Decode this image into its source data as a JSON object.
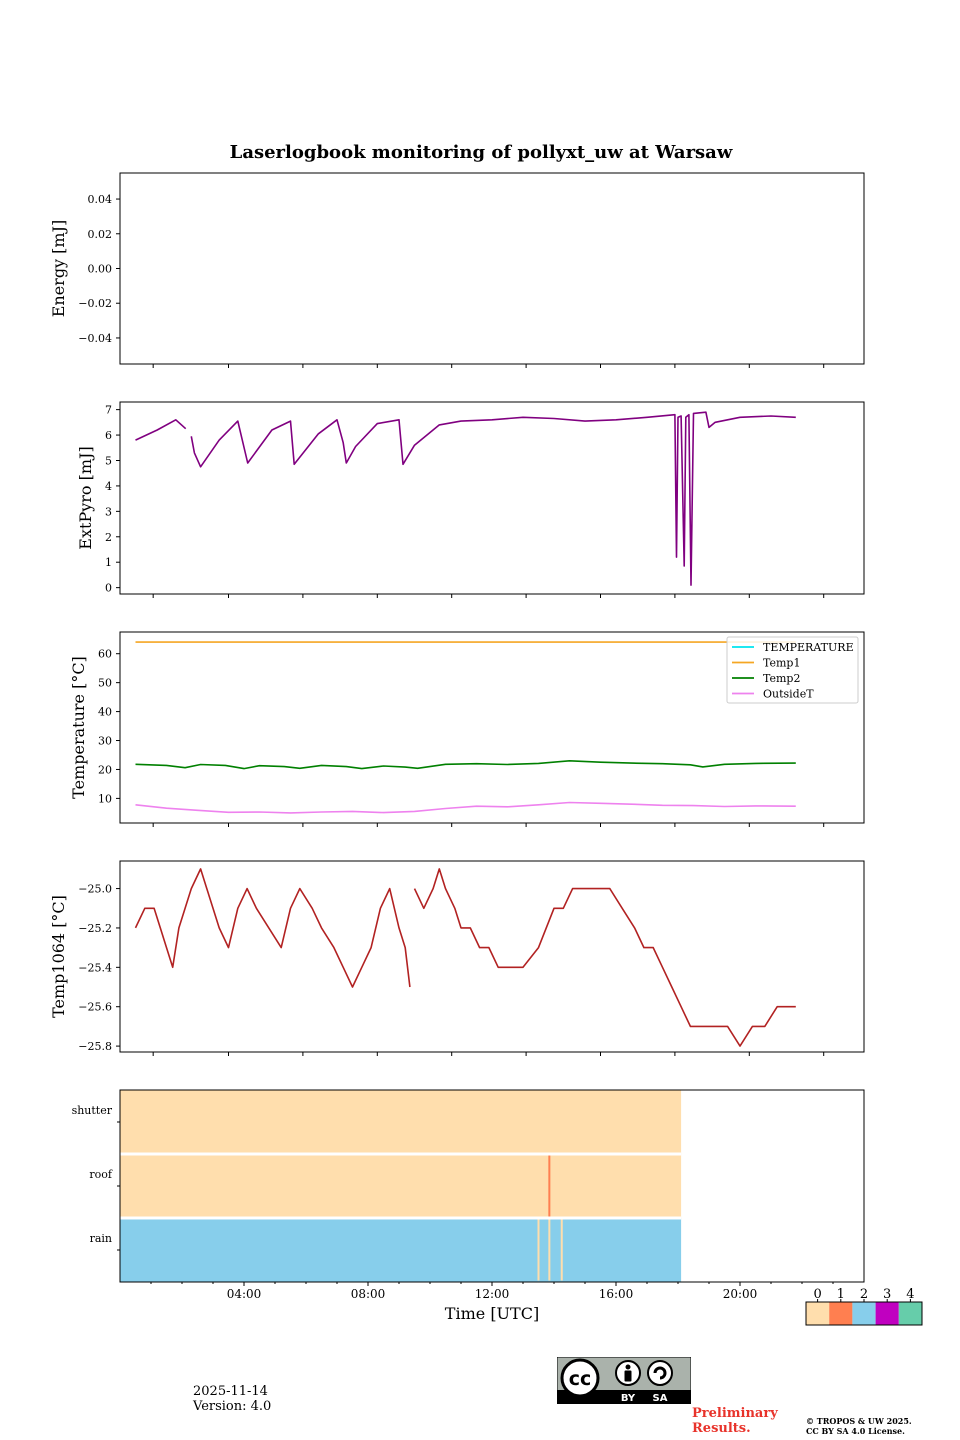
{
  "figure": {
    "title": "Laserlogbook monitoring of pollyxt_uw at Warsaw",
    "date": "2025-11-14",
    "version": "Version: 4.0",
    "preliminary": "Preliminary Results.",
    "copyright_line1": "© TROPOS & UW 2025.",
    "copyright_line2": "CC BY SA 4.0 License.",
    "cc_badge": {
      "icon": "cc-by-sa-badge-icon",
      "cc": "cc",
      "by": "BY",
      "sa": "SA"
    }
  },
  "chart_data": [
    {
      "id": "energy",
      "type": "line",
      "ylabel": "Energy [mJ]",
      "ylim": [
        -0.055,
        0.055
      ],
      "yticks": [
        0.04,
        0.02,
        0.0,
        -0.02,
        -0.04
      ],
      "yticklabels": [
        "0.04",
        "0.02",
        "0.00",
        "−0.02",
        "−0.04"
      ],
      "series": []
    },
    {
      "id": "extpyro",
      "type": "line",
      "ylabel": "ExtPyro [mJ]",
      "ylim": [
        -0.25,
        7.3
      ],
      "yticks": [
        0,
        1,
        2,
        3,
        4,
        5,
        6,
        7
      ],
      "yticklabels": [
        "0",
        "1",
        "2",
        "3",
        "4",
        "5",
        "6",
        "7"
      ],
      "color": "#800080",
      "series": [
        {
          "name": "ExtPyro",
          "x": [
            0.5,
            1.2,
            1.8,
            2.12,
            2.2,
            2.3,
            2.4,
            2.6,
            3.2,
            3.8,
            4.12,
            4.9,
            5.5,
            5.62,
            6.4,
            7.0,
            7.2,
            7.3,
            7.6,
            8.3,
            9.0,
            9.13,
            9.5,
            10.3,
            11.0,
            12.0,
            13.0,
            14.0,
            15.0,
            16.0,
            17.0,
            17.9,
            17.95,
            18.0,
            18.1,
            18.2,
            18.25,
            18.35,
            18.42,
            18.5,
            18.9,
            19.0,
            19.2,
            20.0,
            21.0,
            21.8
          ],
          "y": [
            5.8,
            6.2,
            6.6,
            6.25,
            null,
            5.95,
            5.3,
            4.75,
            5.8,
            6.55,
            4.9,
            6.2,
            6.55,
            4.85,
            6.05,
            6.6,
            5.7,
            4.9,
            5.55,
            6.45,
            6.6,
            4.85,
            5.6,
            6.4,
            6.55,
            6.6,
            6.7,
            6.65,
            6.55,
            6.6,
            6.7,
            6.8,
            1.2,
            6.7,
            6.75,
            0.85,
            6.7,
            6.8,
            0.1,
            6.85,
            6.9,
            6.3,
            6.5,
            6.7,
            6.75,
            6.7
          ]
        }
      ]
    },
    {
      "id": "temperature",
      "type": "line",
      "ylabel": "Temperature [°C]",
      "ylim": [
        1.5,
        67.5
      ],
      "yticks": [
        10,
        20,
        30,
        40,
        50,
        60
      ],
      "yticklabels": [
        "10",
        "20",
        "30",
        "40",
        "50",
        "60"
      ],
      "legend": "top-right",
      "series": [
        {
          "name": "TEMPERATURE",
          "color": "#00e5ee",
          "x": [],
          "y": []
        },
        {
          "name": "Temp1",
          "color": "#f5a623",
          "x": [
            0.5,
            21.8
          ],
          "y": [
            64,
            64
          ]
        },
        {
          "name": "Temp2",
          "color": "#008000",
          "x": [
            0.5,
            1.5,
            2.1,
            2.6,
            3.4,
            4.0,
            4.5,
            5.3,
            5.8,
            6.5,
            7.3,
            7.8,
            8.5,
            9.2,
            9.6,
            10.5,
            11.5,
            12.5,
            13.5,
            14.5,
            15.5,
            16.5,
            17.5,
            18.4,
            18.8,
            19.5,
            20.5,
            21.8
          ],
          "y": [
            21.8,
            21.4,
            20.6,
            21.7,
            21.4,
            20.3,
            21.3,
            21.0,
            20.4,
            21.4,
            21.0,
            20.3,
            21.2,
            20.8,
            20.4,
            21.8,
            22.0,
            21.7,
            22.1,
            23.0,
            22.5,
            22.2,
            22.0,
            21.6,
            20.9,
            21.8,
            22.1,
            22.2
          ]
        },
        {
          "name": "OutsideT",
          "color": "#ee82ee",
          "x": [
            0.5,
            1.5,
            2.5,
            3.5,
            4.5,
            5.5,
            6.5,
            7.5,
            8.5,
            9.5,
            10.5,
            11.5,
            12.5,
            13.5,
            14.5,
            15.5,
            16.5,
            17.5,
            18.5,
            19.5,
            20.5,
            21.8
          ],
          "y": [
            7.8,
            6.6,
            5.9,
            5.2,
            5.3,
            5.0,
            5.3,
            5.5,
            5.1,
            5.5,
            6.5,
            7.3,
            7.1,
            7.8,
            8.6,
            8.3,
            8.0,
            7.6,
            7.5,
            7.2,
            7.4,
            7.3
          ]
        }
      ]
    },
    {
      "id": "temp1064",
      "type": "line",
      "ylabel": "Temp1064 [°C]",
      "ylim": [
        -25.83,
        -24.86
      ],
      "yticks": [
        -25.0,
        -25.2,
        -25.4,
        -25.6,
        -25.8
      ],
      "yticklabels": [
        "−25.0",
        "−25.2",
        "−25.4",
        "−25.6",
        "−25.8"
      ],
      "color": "#b22222",
      "series": [
        {
          "name": "Temp1064",
          "x": [
            0.5,
            0.8,
            1.1,
            1.3,
            1.5,
            1.7,
            1.9,
            2.1,
            2.3,
            2.6,
            2.8,
            3.0,
            3.2,
            3.5,
            3.8,
            4.1,
            4.4,
            4.8,
            5.2,
            5.5,
            5.8,
            6.2,
            6.5,
            6.9,
            7.2,
            7.5,
            7.8,
            8.1,
            8.4,
            8.7,
            9.0,
            9.2,
            9.35,
            null,
            9.5,
            9.8,
            10.1,
            10.3,
            10.5,
            10.8,
            11.0,
            11.3,
            11.6,
            11.9,
            12.2,
            12.6,
            13.0,
            13.5,
            14.0,
            14.3,
            14.6,
            15.0,
            15.4,
            15.8,
            16.2,
            16.6,
            16.9,
            17.2,
            17.5,
            17.8,
            18.1,
            18.4,
            18.8,
            19.2,
            19.6,
            20.0,
            20.4,
            20.8,
            21.2,
            21.5,
            21.8
          ],
          "y": [
            -25.2,
            -25.1,
            -25.1,
            -25.2,
            -25.3,
            -25.4,
            -25.2,
            -25.1,
            -25.0,
            -24.9,
            -25.0,
            -25.1,
            -25.2,
            -25.3,
            -25.1,
            -25.0,
            -25.1,
            -25.2,
            -25.3,
            -25.1,
            -25.0,
            -25.1,
            -25.2,
            -25.3,
            -25.4,
            -25.5,
            -25.4,
            -25.3,
            -25.1,
            -25.0,
            -25.2,
            -25.3,
            -25.5,
            null,
            -25.0,
            -25.1,
            -25.0,
            -24.9,
            -25.0,
            -25.1,
            -25.2,
            -25.2,
            -25.3,
            -25.3,
            -25.4,
            -25.4,
            -25.4,
            -25.3,
            -25.1,
            -25.1,
            -25.0,
            -25.0,
            -25.0,
            -25.0,
            -25.1,
            -25.2,
            -25.3,
            -25.3,
            -25.4,
            -25.5,
            -25.6,
            -25.7,
            -25.7,
            -25.7,
            -25.7,
            -25.8,
            -25.7,
            -25.7,
            -25.6,
            -25.6,
            -25.6
          ]
        }
      ]
    },
    {
      "id": "status",
      "type": "heatmap",
      "rows": [
        "shutter",
        "roof",
        "rain"
      ],
      "x_end_hours": 18.1,
      "row_status": [
        0,
        0,
        2
      ],
      "anomalies": [
        {
          "row": "roof",
          "x": 13.85,
          "status": 1
        },
        {
          "row": "roof",
          "x": 14.05,
          "status": 0
        },
        {
          "row": "roof",
          "x": 14.2,
          "status": 0
        },
        {
          "row": "rain",
          "x": 13.5,
          "status": 0
        },
        {
          "row": "rain",
          "x": 13.85,
          "status": 0
        },
        {
          "row": "rain",
          "x": 14.25,
          "status": 0
        }
      ]
    }
  ],
  "x_axis": {
    "xlim": [
      0,
      24
    ],
    "major_ticks": [
      4,
      8,
      12,
      16,
      20
    ],
    "major_labels": [
      "04:00",
      "08:00",
      "12:00",
      "16:00",
      "20:00"
    ],
    "minor_ticks": [
      1,
      2,
      3,
      5,
      6,
      7,
      9,
      10,
      11,
      13,
      14,
      15,
      17,
      18,
      19,
      21,
      22,
      23
    ],
    "panel_ticks": [
      1.07,
      3.5,
      5.9,
      8.3,
      10.7,
      13.1,
      15.5,
      17.9,
      20.3,
      22.7
    ],
    "xlabel": "Time [UTC]"
  },
  "colorbar": {
    "ticks": [
      "0",
      "1",
      "2",
      "3",
      "4"
    ],
    "colors": [
      "#ffdead",
      "#ff7f50",
      "#87ceeb",
      "#c000c0",
      "#66cdaa"
    ]
  }
}
